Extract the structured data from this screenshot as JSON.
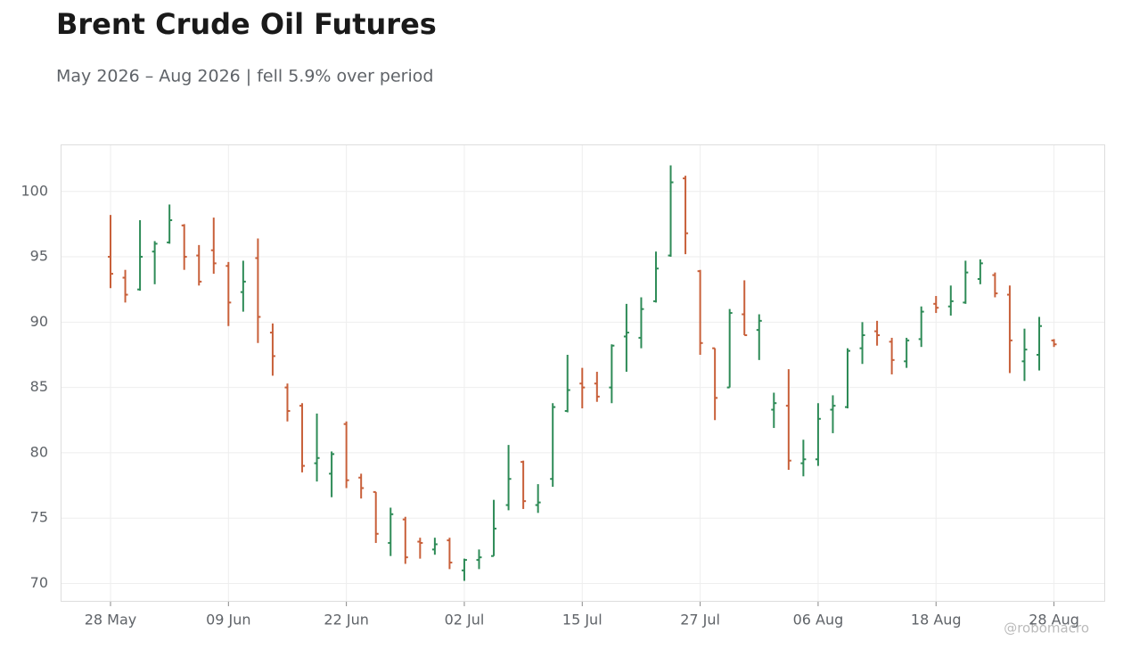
{
  "chart_data": {
    "type": "ohlc",
    "title": "Brent Crude Oil Futures",
    "subtitle": "May 2026 – Aug 2026 | fell 5.9% over period",
    "watermark": "@robomacro",
    "categories": [
      "28 May",
      null,
      null,
      null,
      null,
      null,
      null,
      null,
      "09 Jun",
      null,
      null,
      null,
      null,
      null,
      null,
      null,
      "22 Jun",
      null,
      null,
      null,
      null,
      null,
      null,
      null,
      "02 Jul",
      null,
      null,
      null,
      null,
      null,
      null,
      null,
      "15 Jul",
      null,
      null,
      null,
      null,
      null,
      null,
      null,
      "27 Jul",
      null,
      null,
      null,
      null,
      null,
      null,
      null,
      "06 Aug",
      null,
      null,
      null,
      null,
      null,
      null,
      null,
      "18 Aug",
      null,
      null,
      null,
      null,
      null,
      null,
      null,
      "28 Aug"
    ],
    "open": [
      95.0,
      93.4,
      92.5,
      95.4,
      96.1,
      97.4,
      95.1,
      95.5,
      94.3,
      92.3,
      94.9,
      89.2,
      85.0,
      83.6,
      79.2,
      78.4,
      82.2,
      78.1,
      77.0,
      73.1,
      74.9,
      73.2,
      72.6,
      73.3,
      71.0,
      71.8,
      72.1,
      76.0,
      79.3,
      76.0,
      78.0,
      83.2,
      85.3,
      85.3,
      85.0,
      88.9,
      88.8,
      91.6,
      95.1,
      101.0,
      93.9,
      88.0,
      85.0,
      90.6,
      89.4,
      83.3,
      83.6,
      79.2,
      79.5,
      83.3,
      83.5,
      88.0,
      89.3,
      88.5,
      87.0,
      88.7,
      91.4,
      91.2,
      91.5,
      93.3,
      93.6,
      92.1,
      87.0,
      87.5,
      88.6
    ],
    "high": [
      98.2,
      94.0,
      97.8,
      96.2,
      99.0,
      97.5,
      95.9,
      98.0,
      94.6,
      94.7,
      96.4,
      89.9,
      85.3,
      83.8,
      83.0,
      80.1,
      82.4,
      78.4,
      77.0,
      75.8,
      75.1,
      73.5,
      73.5,
      73.5,
      71.9,
      72.6,
      76.4,
      80.6,
      79.4,
      77.6,
      83.8,
      87.5,
      86.5,
      86.2,
      88.3,
      91.4,
      91.9,
      95.4,
      102.0,
      101.2,
      94.0,
      88.0,
      91.0,
      93.2,
      90.6,
      84.6,
      86.4,
      81.0,
      83.8,
      84.4,
      88.0,
      90.0,
      90.1,
      88.8,
      88.8,
      91.2,
      92.0,
      92.8,
      94.7,
      94.8,
      93.8,
      92.8,
      89.5,
      90.4,
      88.7
    ],
    "low": [
      92.6,
      91.5,
      92.4,
      92.9,
      96.0,
      94.0,
      92.8,
      93.7,
      89.7,
      90.8,
      88.4,
      85.9,
      82.4,
      78.5,
      77.8,
      76.6,
      77.3,
      76.5,
      73.1,
      72.1,
      71.5,
      71.9,
      72.2,
      71.1,
      70.2,
      71.1,
      72.1,
      75.6,
      75.7,
      75.4,
      77.4,
      83.1,
      83.4,
      83.9,
      83.8,
      86.2,
      88.0,
      91.5,
      95.0,
      95.2,
      87.5,
      82.5,
      85.0,
      89.0,
      87.1,
      81.9,
      78.7,
      78.2,
      79.0,
      81.5,
      83.4,
      86.8,
      88.2,
      86.0,
      86.5,
      88.1,
      90.7,
      90.5,
      91.4,
      92.9,
      91.9,
      86.1,
      85.5,
      86.3,
      88.1
    ],
    "close": [
      93.7,
      92.1,
      95.0,
      96.0,
      97.8,
      95.0,
      93.1,
      94.5,
      91.5,
      93.1,
      90.4,
      87.4,
      83.2,
      79.0,
      79.6,
      79.9,
      77.9,
      77.3,
      73.8,
      75.3,
      72.0,
      73.1,
      73.0,
      71.6,
      71.8,
      72.0,
      74.2,
      78.0,
      76.3,
      76.2,
      83.5,
      84.8,
      85.0,
      84.3,
      88.2,
      89.2,
      91.0,
      94.1,
      100.7,
      96.8,
      88.4,
      84.2,
      90.7,
      89.0,
      90.1,
      83.8,
      79.4,
      79.5,
      82.6,
      83.6,
      87.8,
      89.0,
      89.0,
      87.1,
      88.6,
      90.8,
      91.1,
      91.6,
      93.8,
      94.5,
      92.2,
      88.6,
      87.9,
      89.7,
      88.3
    ],
    "up_color": "#2e8b57",
    "down_color": "#c8603a",
    "ylim": [
      68.6,
      103.6
    ],
    "yticks": [
      70,
      75,
      80,
      85,
      90,
      95,
      100
    ],
    "grid": true
  }
}
